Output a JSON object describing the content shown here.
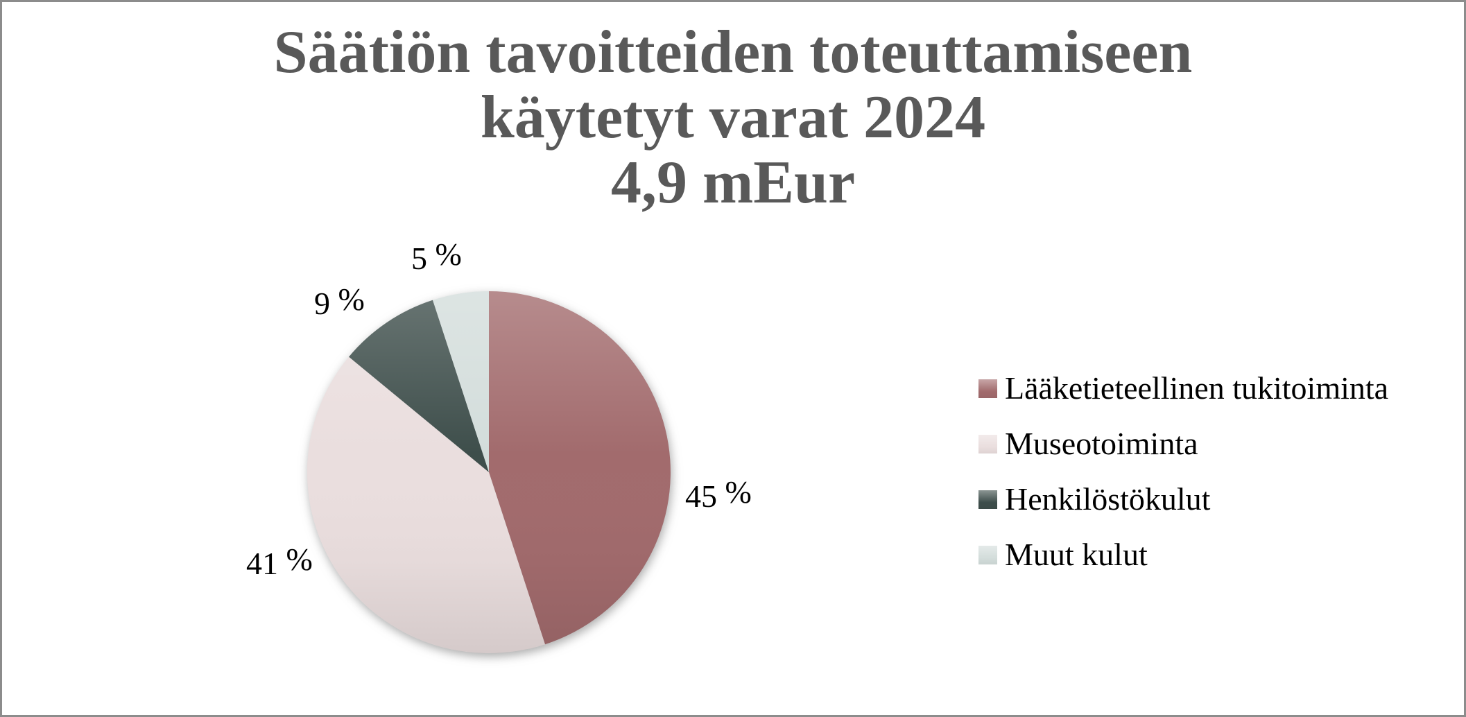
{
  "window": {
    "background": "#ffffff",
    "border_color": "#8c8c8c"
  },
  "title": {
    "lines": [
      "Säätiön tavoitteiden toteuttamiseen",
      "käytetyt varat 2024",
      "4,9 mEur"
    ],
    "color": "#595959"
  },
  "chart_data": {
    "type": "pie",
    "title": "Säätiön tavoitteiden toteuttamiseen käytetyt varat 2024, 4,9 mEur",
    "categories": [
      "Lääketieteellinen tukitoiminta",
      "Museotoiminta",
      "Henkilöstökulut",
      "Muut kulut"
    ],
    "values": [
      45,
      41,
      9,
      5
    ],
    "unit": "%",
    "labels": [
      "45 %",
      "41 %",
      "9 %",
      "5 %"
    ],
    "colors": [
      "#a26b6d",
      "#eadede",
      "#3e4e4b",
      "#d3dddb"
    ],
    "start_angle_deg": 0,
    "direction": "clockwise",
    "legend_position": "right",
    "label_color": "#000000"
  },
  "legend": {
    "items": [
      {
        "label": "Lääketieteellinen tukitoiminta",
        "color": "#a26b6d"
      },
      {
        "label": "Museotoiminta",
        "color": "#eadede"
      },
      {
        "label": "Henkilöstökulut",
        "color": "#3e4e4b"
      },
      {
        "label": "Muut kulut",
        "color": "#d3dddb"
      }
    ]
  }
}
